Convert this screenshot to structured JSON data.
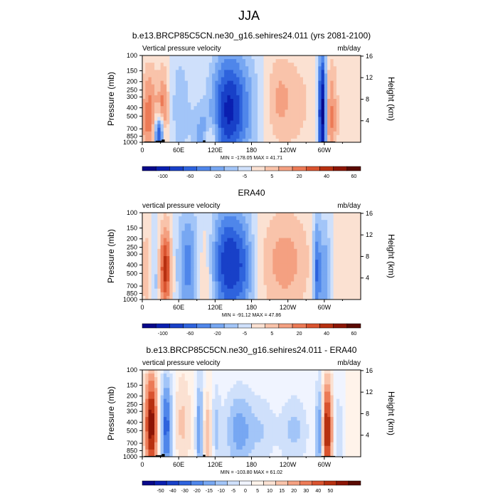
{
  "figure": {
    "title": "JJA"
  },
  "palettes": {
    "absolute": [
      "#08088a",
      "#0a1fb0",
      "#1840c8",
      "#2e63dd",
      "#4f86ea",
      "#77a7f2",
      "#a2c5f8",
      "#cfe0fb",
      "#fbe1d2",
      "#f9c3aa",
      "#f4a081",
      "#ec7a56",
      "#d9532f",
      "#b73010",
      "#8c1505",
      "#5a0a02"
    ],
    "difference": [
      "#08088a",
      "#0a1fb0",
      "#1840c8",
      "#2e63dd",
      "#4f86ea",
      "#77a7f2",
      "#a2c5f8",
      "#cfe0fb",
      "#f0f4ff",
      "#fff3ea",
      "#fbe1d2",
      "#f9c3aa",
      "#f4a081",
      "#ec7a56",
      "#d9532f",
      "#b73010",
      "#8c1505",
      "#5a0a02"
    ]
  },
  "chart_data": [
    {
      "type": "heatmap",
      "title": "b.e13.BRCP85C5CN.ne30_g16.sehires24.011 (yrs 2081-2100)",
      "left_label": "Vertical pressure velocity",
      "right_label": "mb/day",
      "ylabel": "Pressure (mb)",
      "y2label": "Height (km)",
      "x_ticks": [
        "0",
        "60E",
        "120E",
        "180",
        "120W",
        "60W"
      ],
      "x_tick_lon": [
        0,
        60,
        120,
        180,
        240,
        300
      ],
      "xlim": [
        0,
        360
      ],
      "y_ticks": [
        "100",
        "150",
        "200",
        "250",
        "300",
        "400",
        "500",
        "700",
        "850",
        "1000"
      ],
      "y_tick_p": [
        100,
        150,
        200,
        250,
        300,
        400,
        500,
        700,
        850,
        1000
      ],
      "ylim": [
        100,
        1000
      ],
      "y_scale": "log",
      "y2_ticks": [
        "16",
        "12",
        "8",
        "4"
      ],
      "y2_tick_km": [
        16,
        12,
        8,
        4
      ],
      "stats": "MIN = -178.05  MAX =  41.71",
      "palette": "absolute",
      "colorbar_labels": [
        "-100",
        "-60",
        "-20",
        "-5",
        "5",
        "20",
        "40",
        "60"
      ],
      "features": [
        {
          "lon": 12,
          "w": 10,
          "p": 500,
          "h": 0.9,
          "v": 32
        },
        {
          "lon": 28,
          "w": 6,
          "p": 800,
          "h": 0.35,
          "v": -60
        },
        {
          "lon": 35,
          "w": 6,
          "p": 450,
          "h": 0.8,
          "v": 30
        },
        {
          "lon": 62,
          "w": 10,
          "p": 400,
          "h": 1.0,
          "v": -15
        },
        {
          "lon": 85,
          "w": 12,
          "p": 450,
          "h": 1.0,
          "v": -5
        },
        {
          "lon": 100,
          "w": 10,
          "p": 800,
          "h": 0.45,
          "v": -20
        },
        {
          "lon": 112,
          "w": 8,
          "p": 850,
          "h": 0.3,
          "v": 20
        },
        {
          "lon": 138,
          "w": 18,
          "p": 420,
          "h": 1.1,
          "v": -42
        },
        {
          "lon": 165,
          "w": 22,
          "p": 400,
          "h": 1.1,
          "v": -25
        },
        {
          "lon": 240,
          "w": 32,
          "p": 350,
          "h": 1.0,
          "v": 14
        },
        {
          "lon": 225,
          "w": 12,
          "p": 300,
          "h": 0.7,
          "v": 8
        },
        {
          "lon": 297,
          "w": 5,
          "p": 450,
          "h": 1.2,
          "v": -75
        },
        {
          "lon": 310,
          "w": 8,
          "p": 500,
          "h": 1.0,
          "v": 28
        },
        {
          "lon": 345,
          "w": 14,
          "p": 450,
          "h": 1.0,
          "v": 4
        }
      ],
      "topo": [
        [
          3,
          22,
          980
        ],
        [
          22,
          32,
          960
        ],
        [
          32,
          37,
          930
        ],
        [
          100,
          104,
          950
        ],
        [
          295,
          318,
          980
        ]
      ]
    },
    {
      "type": "heatmap",
      "title": "ERA40",
      "left_label": "vertical pressure velocity",
      "right_label": "mb/day",
      "ylabel": "Pressure (mb)",
      "y2label": "Height (km)",
      "x_ticks": [
        "0",
        "60E",
        "120E",
        "180",
        "120W",
        "60W"
      ],
      "x_tick_lon": [
        0,
        60,
        120,
        180,
        240,
        300
      ],
      "xlim": [
        0,
        360
      ],
      "y_ticks": [
        "100",
        "150",
        "200",
        "250",
        "300",
        "400",
        "500",
        "700",
        "850",
        "1000"
      ],
      "y_tick_p": [
        100,
        150,
        200,
        250,
        300,
        400,
        500,
        700,
        850,
        1000
      ],
      "ylim": [
        100,
        1000
      ],
      "y_scale": "log",
      "y2_ticks": [
        "16",
        "12",
        "8",
        "4"
      ],
      "y2_tick_km": [
        16,
        12,
        8,
        4
      ],
      "stats": "MIN = -91.12  MAX =  47.86",
      "palette": "absolute",
      "colorbar_labels": [
        "-100",
        "-60",
        "-20",
        "-5",
        "5",
        "20",
        "40",
        "60"
      ],
      "features": [
        {
          "lon": 8,
          "w": 10,
          "p": 450,
          "h": 0.9,
          "v": 14
        },
        {
          "lon": 20,
          "w": 5,
          "p": 500,
          "h": 1.0,
          "v": -20
        },
        {
          "lon": 38,
          "w": 7,
          "p": 450,
          "h": 0.8,
          "v": 48
        },
        {
          "lon": 75,
          "w": 12,
          "p": 400,
          "h": 1.1,
          "v": -30
        },
        {
          "lon": 103,
          "w": 8,
          "p": 500,
          "h": 0.9,
          "v": 12
        },
        {
          "lon": 140,
          "w": 18,
          "p": 380,
          "h": 1.1,
          "v": -48
        },
        {
          "lon": 168,
          "w": 14,
          "p": 420,
          "h": 1.0,
          "v": -25
        },
        {
          "lon": 235,
          "w": 30,
          "p": 370,
          "h": 1.0,
          "v": 22
        },
        {
          "lon": 288,
          "w": 5,
          "p": 450,
          "h": 1.0,
          "v": -40
        },
        {
          "lon": 302,
          "w": 6,
          "p": 500,
          "h": 1.0,
          "v": -25
        },
        {
          "lon": 335,
          "w": 15,
          "p": 400,
          "h": 1.0,
          "v": 4
        }
      ],
      "topo": []
    },
    {
      "type": "heatmap",
      "title": "b.e13.BRCP85C5CN.ne30_g16.sehires24.011 - ERA40",
      "left_label": "vertical pressure velocity",
      "right_label": "mb/day",
      "ylabel": "Pressure (mb)",
      "y2label": "Height (km)",
      "x_ticks": [
        "0",
        "60E",
        "120E",
        "180",
        "120W",
        "60W"
      ],
      "x_tick_lon": [
        0,
        60,
        120,
        180,
        240,
        300
      ],
      "xlim": [
        0,
        360
      ],
      "y_ticks": [
        "100",
        "150",
        "200",
        "250",
        "300",
        "400",
        "500",
        "700",
        "850",
        "1000"
      ],
      "y_tick_p": [
        100,
        150,
        200,
        250,
        300,
        400,
        500,
        700,
        850,
        1000
      ],
      "ylim": [
        100,
        1000
      ],
      "y_scale": "log",
      "y2_ticks": [
        "16",
        "12",
        "8",
        "4"
      ],
      "y2_tick_km": [
        16,
        12,
        8,
        4
      ],
      "stats": "MIN = -103.80  MAX =  61.02",
      "palette": "difference",
      "colorbar_labels": [
        "-50",
        "-40",
        "-30",
        "-20",
        "-15",
        "-10",
        "-5",
        "0",
        "5",
        "10",
        "15",
        "20",
        "30",
        "40",
        "50"
      ],
      "features": [
        {
          "lon": 15,
          "w": 8,
          "p": 420,
          "h": 1.0,
          "v": 48
        },
        {
          "lon": 40,
          "w": 8,
          "p": 450,
          "h": 1.0,
          "v": -35
        },
        {
          "lon": 65,
          "w": 12,
          "p": 400,
          "h": 1.0,
          "v": 14
        },
        {
          "lon": 95,
          "w": 5,
          "p": 500,
          "h": 1.0,
          "v": -30
        },
        {
          "lon": 108,
          "w": 8,
          "p": 550,
          "h": 0.8,
          "v": 22
        },
        {
          "lon": 120,
          "w": 6,
          "p": 500,
          "h": 0.9,
          "v": -18
        },
        {
          "lon": 160,
          "w": 18,
          "p": 500,
          "h": 0.8,
          "v": -22
        },
        {
          "lon": 200,
          "w": 14,
          "p": 500,
          "h": 0.7,
          "v": -10
        },
        {
          "lon": 250,
          "w": 18,
          "p": 500,
          "h": 0.7,
          "v": -14
        },
        {
          "lon": 292,
          "w": 4,
          "p": 500,
          "h": 1.0,
          "v": -30
        },
        {
          "lon": 305,
          "w": 7,
          "p": 500,
          "h": 1.0,
          "v": 45
        },
        {
          "lon": 322,
          "w": 8,
          "p": 500,
          "h": 1.0,
          "v": -12
        },
        {
          "lon": 345,
          "w": 12,
          "p": 450,
          "h": 1.0,
          "v": 5
        }
      ],
      "topo": [
        [
          3,
          22,
          980
        ],
        [
          22,
          32,
          960
        ],
        [
          32,
          37,
          930
        ],
        [
          100,
          104,
          950
        ],
        [
          295,
          318,
          980
        ]
      ]
    }
  ]
}
